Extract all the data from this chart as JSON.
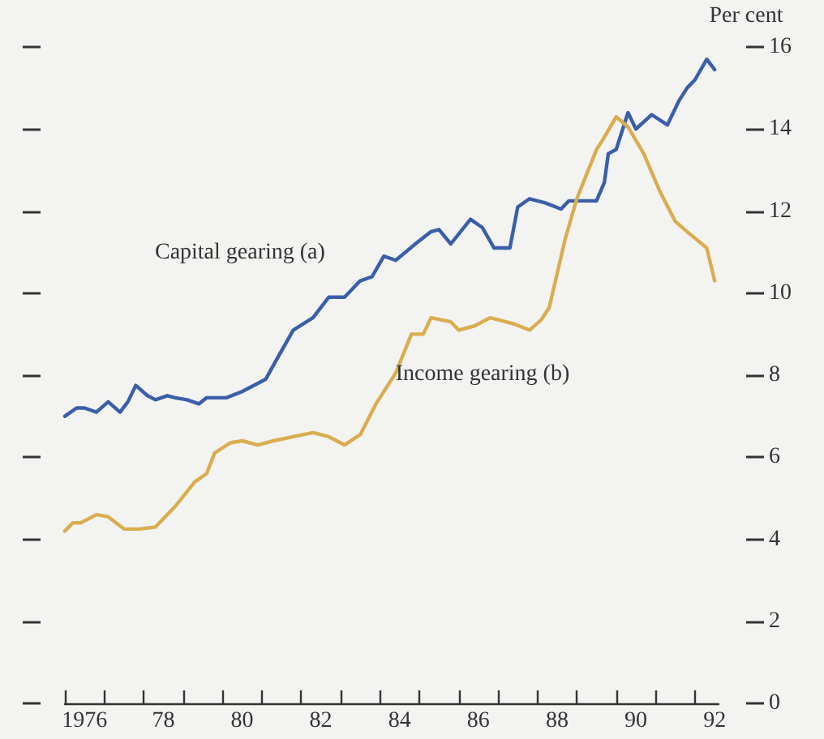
{
  "chart_data": {
    "type": "line",
    "ylabel": "Per cent",
    "xlim": [
      1975.5,
      1992.1
    ],
    "xticks": [
      {
        "value": 1975.5,
        "label": null
      },
      {
        "value": 1976,
        "label": "1976"
      },
      {
        "value": 1976.5,
        "label": null
      },
      {
        "value": 1977.5,
        "label": null
      },
      {
        "value": 1978,
        "label": "78"
      },
      {
        "value": 1978.5,
        "label": null
      },
      {
        "value": 1979.5,
        "label": null
      },
      {
        "value": 1980,
        "label": "80"
      },
      {
        "value": 1980.5,
        "label": null
      },
      {
        "value": 1981.5,
        "label": null
      },
      {
        "value": 1982,
        "label": "82"
      },
      {
        "value": 1982.5,
        "label": null
      },
      {
        "value": 1983.5,
        "label": null
      },
      {
        "value": 1984,
        "label": "84"
      },
      {
        "value": 1984.5,
        "label": null
      },
      {
        "value": 1985.5,
        "label": null
      },
      {
        "value": 1986,
        "label": "86"
      },
      {
        "value": 1986.5,
        "label": null
      },
      {
        "value": 1987.5,
        "label": null
      },
      {
        "value": 1988,
        "label": "88"
      },
      {
        "value": 1988.5,
        "label": null
      },
      {
        "value": 1989.5,
        "label": null
      },
      {
        "value": 1990,
        "label": "90"
      },
      {
        "value": 1990.5,
        "label": null
      },
      {
        "value": 1991.5,
        "label": null
      },
      {
        "value": 1992,
        "label": "92"
      }
    ],
    "ylim": [
      0,
      16
    ],
    "yticks": [
      0,
      2,
      4,
      6,
      8,
      10,
      12,
      14,
      16
    ],
    "grid": false,
    "legend": false,
    "marker": "none",
    "line_style": "solid",
    "series": [
      {
        "name": "Capital gearing (a)",
        "color": "#3a5fa8",
        "x": [
          1975.5,
          1975.8,
          1976.0,
          1976.3,
          1976.6,
          1976.9,
          1977.1,
          1977.3,
          1977.6,
          1977.8,
          1978.1,
          1978.3,
          1978.6,
          1978.9,
          1979.1,
          1979.6,
          1980.0,
          1980.6,
          1980.8,
          1981.3,
          1981.8,
          1982.2,
          1982.6,
          1983.0,
          1983.3,
          1983.6,
          1983.9,
          1984.4,
          1984.8,
          1985.0,
          1985.3,
          1985.8,
          1986.1,
          1986.4,
          1986.8,
          1987.0,
          1987.3,
          1987.7,
          1988.1,
          1988.3,
          1989.0,
          1989.2,
          1989.3,
          1989.5,
          1989.8,
          1990.0,
          1990.4,
          1990.8,
          1991.1,
          1991.3,
          1991.5,
          1991.8,
          1992.0
        ],
        "values": [
          7.0,
          7.2,
          7.2,
          7.1,
          7.35,
          7.1,
          7.35,
          7.75,
          7.5,
          7.4,
          7.5,
          7.45,
          7.4,
          7.3,
          7.45,
          7.45,
          7.6,
          7.9,
          8.25,
          9.1,
          9.4,
          9.9,
          9.9,
          10.3,
          10.4,
          10.9,
          10.8,
          11.2,
          11.5,
          11.55,
          11.2,
          11.8,
          11.6,
          11.1,
          11.1,
          12.1,
          12.3,
          12.2,
          12.05,
          12.25,
          12.25,
          12.7,
          13.4,
          13.5,
          14.4,
          14.0,
          14.35,
          14.1,
          14.7,
          15.0,
          15.2,
          15.7,
          15.45
        ]
      },
      {
        "name": "Income gearing (b)",
        "color": "#d9ad4f",
        "x": [
          1975.5,
          1975.7,
          1975.9,
          1976.3,
          1976.6,
          1977.0,
          1977.4,
          1977.8,
          1978.3,
          1978.8,
          1979.1,
          1979.3,
          1979.7,
          1980.0,
          1980.4,
          1980.8,
          1981.3,
          1981.8,
          1982.2,
          1982.6,
          1983.0,
          1983.4,
          1983.9,
          1984.3,
          1984.6,
          1984.8,
          1985.3,
          1985.5,
          1985.9,
          1986.3,
          1986.9,
          1987.3,
          1987.6,
          1987.8,
          1988.2,
          1988.5,
          1989.0,
          1989.2,
          1989.5,
          1989.8,
          1990.2,
          1990.6,
          1991.0,
          1991.3,
          1991.8,
          1992.0
        ],
        "values": [
          4.2,
          4.4,
          4.4,
          4.6,
          4.55,
          4.25,
          4.25,
          4.3,
          4.8,
          5.4,
          5.6,
          6.1,
          6.35,
          6.4,
          6.3,
          6.4,
          6.5,
          6.6,
          6.5,
          6.3,
          6.55,
          7.3,
          8.05,
          9.0,
          9.0,
          9.4,
          9.3,
          9.1,
          9.2,
          9.4,
          9.25,
          9.1,
          9.35,
          9.65,
          11.3,
          12.3,
          13.5,
          13.8,
          14.3,
          14.05,
          13.4,
          12.5,
          11.75,
          11.5,
          11.1,
          10.3
        ]
      }
    ]
  }
}
